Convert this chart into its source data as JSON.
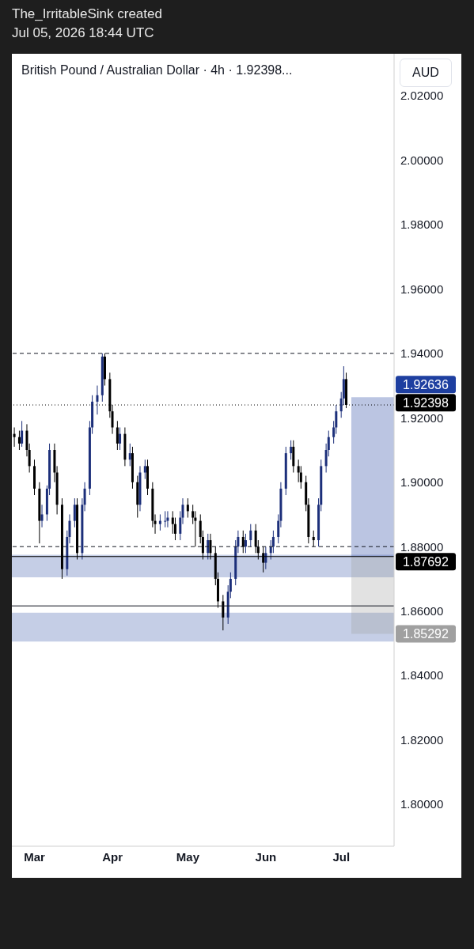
{
  "chart_data": {
    "type": "candlestick",
    "title": "British Pound / Australian Dollar · 4h · 1.92398...",
    "ylabel": "AUD",
    "annotations": [
      "The_IrritableSink created",
      "Jul 05, 2026 18:44 UTC"
    ],
    "x": [
      "2026-02-21",
      "2026-02-23",
      "2026-02-24",
      "2026-02-26",
      "2026-02-27",
      "2026-03-01",
      "2026-03-03",
      "2026-03-04",
      "2026-03-06",
      "2026-03-07",
      "2026-03-09",
      "2026-03-10",
      "2026-03-12",
      "2026-03-14",
      "2026-03-15",
      "2026-03-17",
      "2026-03-18",
      "2026-03-20",
      "2026-03-21",
      "2026-03-23",
      "2026-03-24",
      "2026-03-26",
      "2026-03-28",
      "2026-03-29",
      "2026-03-31",
      "2026-04-01",
      "2026-04-03",
      "2026-04-04",
      "2026-04-06",
      "2026-04-08",
      "2026-04-09",
      "2026-04-11",
      "2026-04-12",
      "2026-04-14",
      "2026-04-15",
      "2026-04-17",
      "2026-04-18",
      "2026-04-20",
      "2026-04-22",
      "2026-04-23",
      "2026-04-25",
      "2026-04-26",
      "2026-04-28",
      "2026-04-29",
      "2026-05-01",
      "2026-05-03",
      "2026-05-04",
      "2026-05-06",
      "2026-05-07",
      "2026-05-09",
      "2026-05-10",
      "2026-05-12",
      "2026-05-13",
      "2026-05-15",
      "2026-05-17",
      "2026-05-18",
      "2026-05-20",
      "2026-05-21",
      "2026-05-23",
      "2026-05-24",
      "2026-05-26",
      "2026-05-28",
      "2026-05-29",
      "2026-05-31",
      "2026-06-01",
      "2026-06-03",
      "2026-06-04",
      "2026-06-06",
      "2026-06-07",
      "2026-06-09",
      "2026-06-11",
      "2026-06-12",
      "2026-06-14",
      "2026-06-15",
      "2026-06-17",
      "2026-06-18",
      "2026-06-20",
      "2026-06-22",
      "2026-06-23",
      "2026-06-25",
      "2026-06-26",
      "2026-06-28",
      "2026-06-29",
      "2026-07-01",
      "2026-07-02",
      "2026-07-03"
    ],
    "ohlc": [
      [
        1.915,
        1.917,
        1.911,
        1.914
      ],
      [
        1.914,
        1.916,
        1.91,
        1.912
      ],
      [
        1.912,
        1.919,
        1.911,
        1.916
      ],
      [
        1.916,
        1.918,
        1.908,
        1.91
      ],
      [
        1.91,
        1.912,
        1.903,
        1.905
      ],
      [
        1.905,
        1.907,
        1.896,
        1.898
      ],
      [
        1.898,
        1.9,
        1.881,
        1.888
      ],
      [
        1.888,
        1.893,
        1.886,
        1.89
      ],
      [
        1.89,
        1.899,
        1.888,
        1.898
      ],
      [
        1.898,
        1.912,
        1.896,
        1.91
      ],
      [
        1.91,
        1.912,
        1.9,
        1.903
      ],
      [
        1.903,
        1.905,
        1.89,
        1.893
      ],
      [
        1.893,
        1.895,
        1.87,
        1.873
      ],
      [
        1.873,
        1.885,
        1.871,
        1.883
      ],
      [
        1.883,
        1.89,
        1.881,
        1.888
      ],
      [
        1.888,
        1.895,
        1.886,
        1.893
      ],
      [
        1.893,
        1.895,
        1.876,
        1.878
      ],
      [
        1.878,
        1.895,
        1.876,
        1.893
      ],
      [
        1.893,
        1.9,
        1.891,
        1.898
      ],
      [
        1.898,
        1.919,
        1.896,
        1.917
      ],
      [
        1.917,
        1.927,
        1.915,
        1.925
      ],
      [
        1.925,
        1.93,
        1.921,
        1.927
      ],
      [
        1.927,
        1.94,
        1.925,
        1.939
      ],
      [
        1.939,
        1.94,
        1.93,
        1.932
      ],
      [
        1.932,
        1.934,
        1.92,
        1.922
      ],
      [
        1.922,
        1.924,
        1.915,
        1.917
      ],
      [
        1.917,
        1.919,
        1.91,
        1.912
      ],
      [
        1.912,
        1.917,
        1.91,
        1.915
      ],
      [
        1.915,
        1.917,
        1.905,
        1.907
      ],
      [
        1.907,
        1.912,
        1.905,
        1.909
      ],
      [
        1.909,
        1.911,
        1.898,
        1.9
      ],
      [
        1.9,
        1.902,
        1.889,
        1.893
      ],
      [
        1.893,
        1.905,
        1.891,
        1.903
      ],
      [
        1.903,
        1.907,
        1.901,
        1.905
      ],
      [
        1.905,
        1.907,
        1.896,
        1.898
      ],
      [
        1.898,
        1.9,
        1.886,
        1.888
      ],
      [
        1.888,
        1.89,
        1.884,
        1.887
      ],
      [
        1.887,
        1.89,
        1.885,
        1.888
      ],
      [
        1.888,
        1.891,
        1.886,
        1.888
      ],
      [
        1.888,
        1.891,
        1.886,
        1.889
      ],
      [
        1.889,
        1.891,
        1.884,
        1.887
      ],
      [
        1.887,
        1.889,
        1.882,
        1.884
      ],
      [
        1.884,
        1.891,
        1.882,
        1.889
      ],
      [
        1.889,
        1.895,
        1.887,
        1.893
      ],
      [
        1.893,
        1.895,
        1.889,
        1.891
      ],
      [
        1.891,
        1.893,
        1.887,
        1.889
      ],
      [
        1.889,
        1.891,
        1.88,
        1.888
      ],
      [
        1.888,
        1.89,
        1.881,
        1.883
      ],
      [
        1.883,
        1.885,
        1.876,
        1.878
      ],
      [
        1.878,
        1.884,
        1.876,
        1.882
      ],
      [
        1.882,
        1.884,
        1.876,
        1.878
      ],
      [
        1.878,
        1.88,
        1.868,
        1.87
      ],
      [
        1.87,
        1.872,
        1.861,
        1.863
      ],
      [
        1.863,
        1.865,
        1.854,
        1.858
      ],
      [
        1.858,
        1.868,
        1.856,
        1.866
      ],
      [
        1.866,
        1.872,
        1.864,
        1.87
      ],
      [
        1.87,
        1.882,
        1.868,
        1.88
      ],
      [
        1.88,
        1.885,
        1.878,
        1.883
      ],
      [
        1.883,
        1.885,
        1.878,
        1.88
      ],
      [
        1.88,
        1.884,
        1.878,
        1.882
      ],
      [
        1.882,
        1.887,
        1.88,
        1.885
      ],
      [
        1.885,
        1.887,
        1.878,
        1.88
      ],
      [
        1.88,
        1.882,
        1.876,
        1.878
      ],
      [
        1.878,
        1.88,
        1.872,
        1.875
      ],
      [
        1.875,
        1.88,
        1.873,
        1.878
      ],
      [
        1.878,
        1.882,
        1.876,
        1.88
      ],
      [
        1.88,
        1.885,
        1.878,
        1.883
      ],
      [
        1.883,
        1.89,
        1.881,
        1.888
      ],
      [
        1.888,
        1.9,
        1.886,
        1.898
      ],
      [
        1.898,
        1.911,
        1.896,
        1.909
      ],
      [
        1.909,
        1.913,
        1.907,
        1.911
      ],
      [
        1.911,
        1.913,
        1.903,
        1.905
      ],
      [
        1.905,
        1.907,
        1.9,
        1.903
      ],
      [
        1.903,
        1.905,
        1.898,
        1.9
      ],
      [
        1.9,
        1.902,
        1.891,
        1.893
      ],
      [
        1.893,
        1.895,
        1.881,
        1.883
      ],
      [
        1.883,
        1.885,
        1.88,
        1.882
      ],
      [
        1.882,
        1.895,
        1.88,
        1.893
      ],
      [
        1.893,
        1.907,
        1.891,
        1.905
      ],
      [
        1.905,
        1.912,
        1.903,
        1.91
      ],
      [
        1.91,
        1.916,
        1.908,
        1.914
      ],
      [
        1.914,
        1.919,
        1.912,
        1.917
      ],
      [
        1.917,
        1.924,
        1.915,
        1.922
      ],
      [
        1.922,
        1.928,
        1.92,
        1.926
      ],
      [
        1.926,
        1.936,
        1.924,
        1.932
      ],
      [
        1.932,
        1.934,
        1.923,
        1.924
      ]
    ],
    "xlim": [
      "2026-02-20",
      "2026-07-22"
    ],
    "xticks": [
      {
        "value": "2026-03-01",
        "label": "Mar"
      },
      {
        "value": "2026-04-01",
        "label": "Apr"
      },
      {
        "value": "2026-05-01",
        "label": "May"
      },
      {
        "value": "2026-06-01",
        "label": "Jun"
      },
      {
        "value": "2026-07-01",
        "label": "Jul"
      }
    ],
    "ylim": [
      1.787,
      2.033
    ],
    "yticks": [
      {
        "value": 1.8,
        "label": "1.80000"
      },
      {
        "value": 1.82,
        "label": "1.82000"
      },
      {
        "value": 1.84,
        "label": "1.84000"
      },
      {
        "value": 1.86,
        "label": "1.86000"
      },
      {
        "value": 1.88,
        "label": "1.88000"
      },
      {
        "value": 1.9,
        "label": "1.90000"
      },
      {
        "value": 1.92,
        "label": "1.92000"
      },
      {
        "value": 1.94,
        "label": "1.94000"
      },
      {
        "value": 1.96,
        "label": "1.96000"
      },
      {
        "value": 1.98,
        "label": "1.98000"
      },
      {
        "value": 2.0,
        "label": "2.00000"
      },
      {
        "value": 2.02,
        "label": "2.02000"
      }
    ],
    "ref_lines": [
      {
        "axis": "y",
        "value": 1.94,
        "line_style": "dashed",
        "color": "#131722"
      },
      {
        "axis": "y",
        "value": 1.92398,
        "label": "1.92398",
        "line_style": "dotted",
        "color": "#000000"
      },
      {
        "axis": "y",
        "value": 1.88,
        "line_style": "dashed",
        "color": "#131722"
      },
      {
        "axis": "y",
        "value": 1.8616,
        "line_style": "solid",
        "color": "#131722"
      },
      {
        "axis": "y",
        "value": 1.87692,
        "label": "1.87692",
        "line_style": "solid",
        "color": "#000000"
      }
    ],
    "bands": [
      {
        "axis": "y",
        "from": 1.8705,
        "to": 1.8775,
        "color": "#c5cee6"
      },
      {
        "axis": "y",
        "from": 1.8505,
        "to": 1.8595,
        "color": "#c5cee6"
      },
      {
        "axis": "y",
        "from": 1.87692,
        "to": 1.92636,
        "label": "1.92636",
        "color": "#1e3fa0"
      },
      {
        "axis": "y",
        "from": 1.87692,
        "to": 1.85292,
        "label": "1.85292",
        "color": "#a0a0a0"
      }
    ],
    "tick_labels": "xy",
    "grid": false,
    "legend": false
  }
}
